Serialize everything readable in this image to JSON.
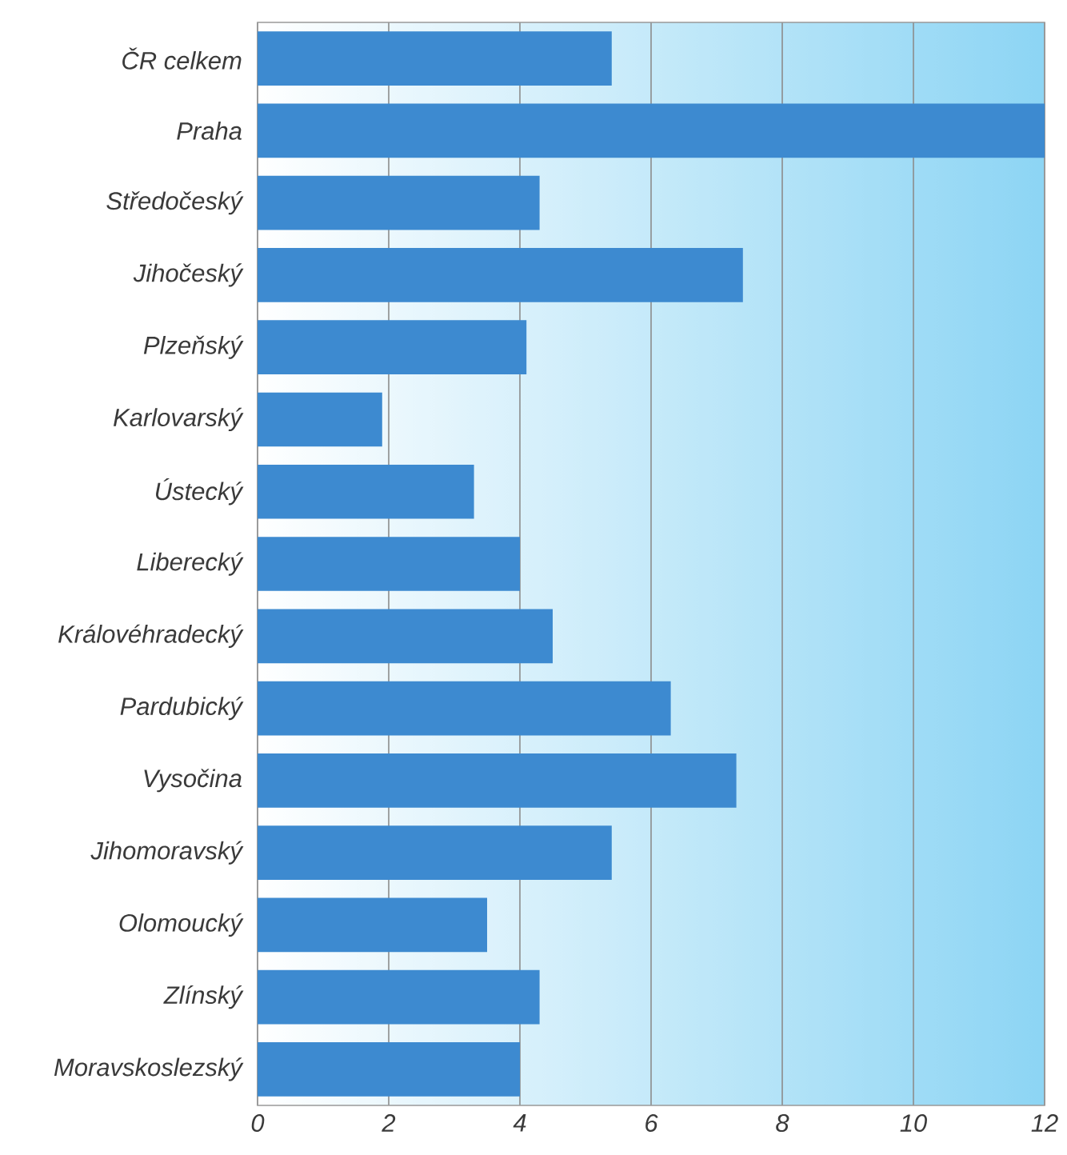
{
  "chart_data": {
    "type": "bar",
    "orientation": "horizontal",
    "categories": [
      "ČR celkem",
      "Praha",
      "Středočeský",
      "Jihočeský",
      "Plzeňský",
      "Karlovarský",
      "Ústecký",
      "Liberecký",
      "Královéhradecký",
      "Pardubický",
      "Vysočina",
      "Jihomoravský",
      "Olomoucký",
      "Zlínský",
      "Moravskoslezský"
    ],
    "values": [
      5.4,
      12.0,
      4.3,
      7.4,
      4.1,
      1.9,
      3.3,
      4.0,
      4.5,
      6.3,
      7.3,
      5.4,
      3.5,
      4.3,
      4.0
    ],
    "color": "#3d8ad0",
    "xlim": [
      0,
      12
    ],
    "xticks": [
      0,
      2,
      4,
      6,
      8,
      10,
      12
    ],
    "grid": "x"
  }
}
